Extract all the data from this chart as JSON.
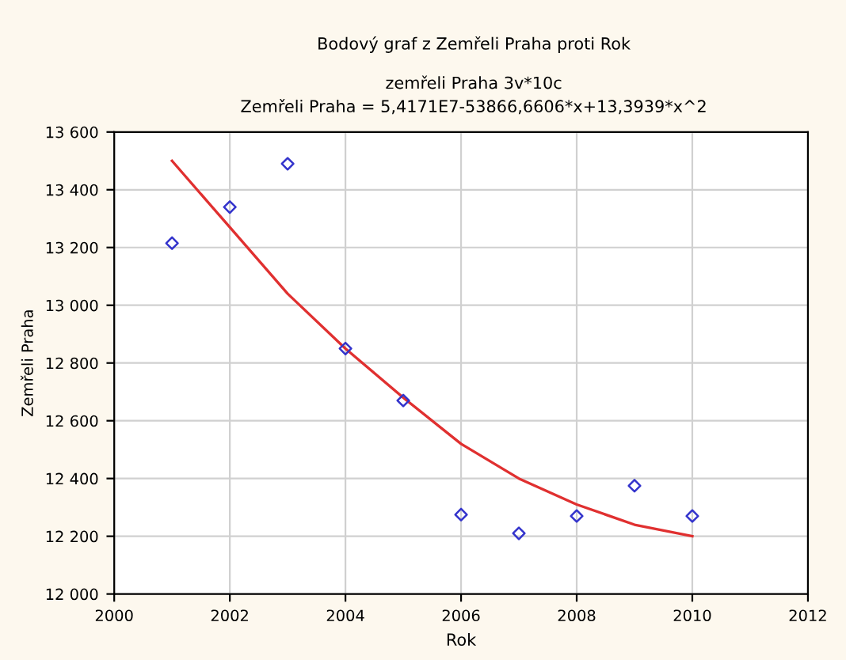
{
  "chart_data": {
    "type": "scatter",
    "title": "Bodový graf z Zemřeli Praha proti Rok",
    "subtitle": "zemřeli Praha 3v*10c\nZemřeli Praha = 5,4171E7-53866,6606*x+13,3939*x^2",
    "xlabel": "Rok",
    "ylabel": "Zemřeli Praha",
    "series": [
      {
        "color": "#3333cc",
        "marker": "diamond",
        "x": [
          2001,
          2002,
          2003,
          2004,
          2005,
          2006,
          2007,
          2008,
          2009,
          2010
        ],
        "values": [
          13215,
          13340,
          13490,
          12850,
          12670,
          12275,
          12210,
          12270,
          12375,
          12270
        ]
      },
      {
        "type": "line",
        "color": "#e03030",
        "marker": "none",
        "x": [
          2001,
          2002,
          2003,
          2004,
          2005,
          2006,
          2007,
          2008,
          2009,
          2010
        ],
        "values": [
          13500,
          13270,
          13040,
          12850,
          12680,
          12520,
          12400,
          12310,
          12240,
          12200
        ]
      }
    ],
    "xlim": [
      2000,
      2012
    ],
    "xticks": [
      2000,
      2002,
      2004,
      2006,
      2008,
      2010,
      2012
    ],
    "ylim": [
      12000,
      13600
    ],
    "yticks": [
      {
        "value": 12000,
        "label": "12 000"
      },
      {
        "value": 12200,
        "label": "12 200"
      },
      {
        "value": 12400,
        "label": "12 400"
      },
      {
        "value": 12600,
        "label": "12 600"
      },
      {
        "value": 12800,
        "label": "12 800"
      },
      {
        "value": 13000,
        "label": "13 000"
      },
      {
        "value": 13200,
        "label": "13 200"
      },
      {
        "value": 13400,
        "label": "13 400"
      },
      {
        "value": 13600,
        "label": "13 600"
      }
    ],
    "grid": true,
    "legend": false
  }
}
